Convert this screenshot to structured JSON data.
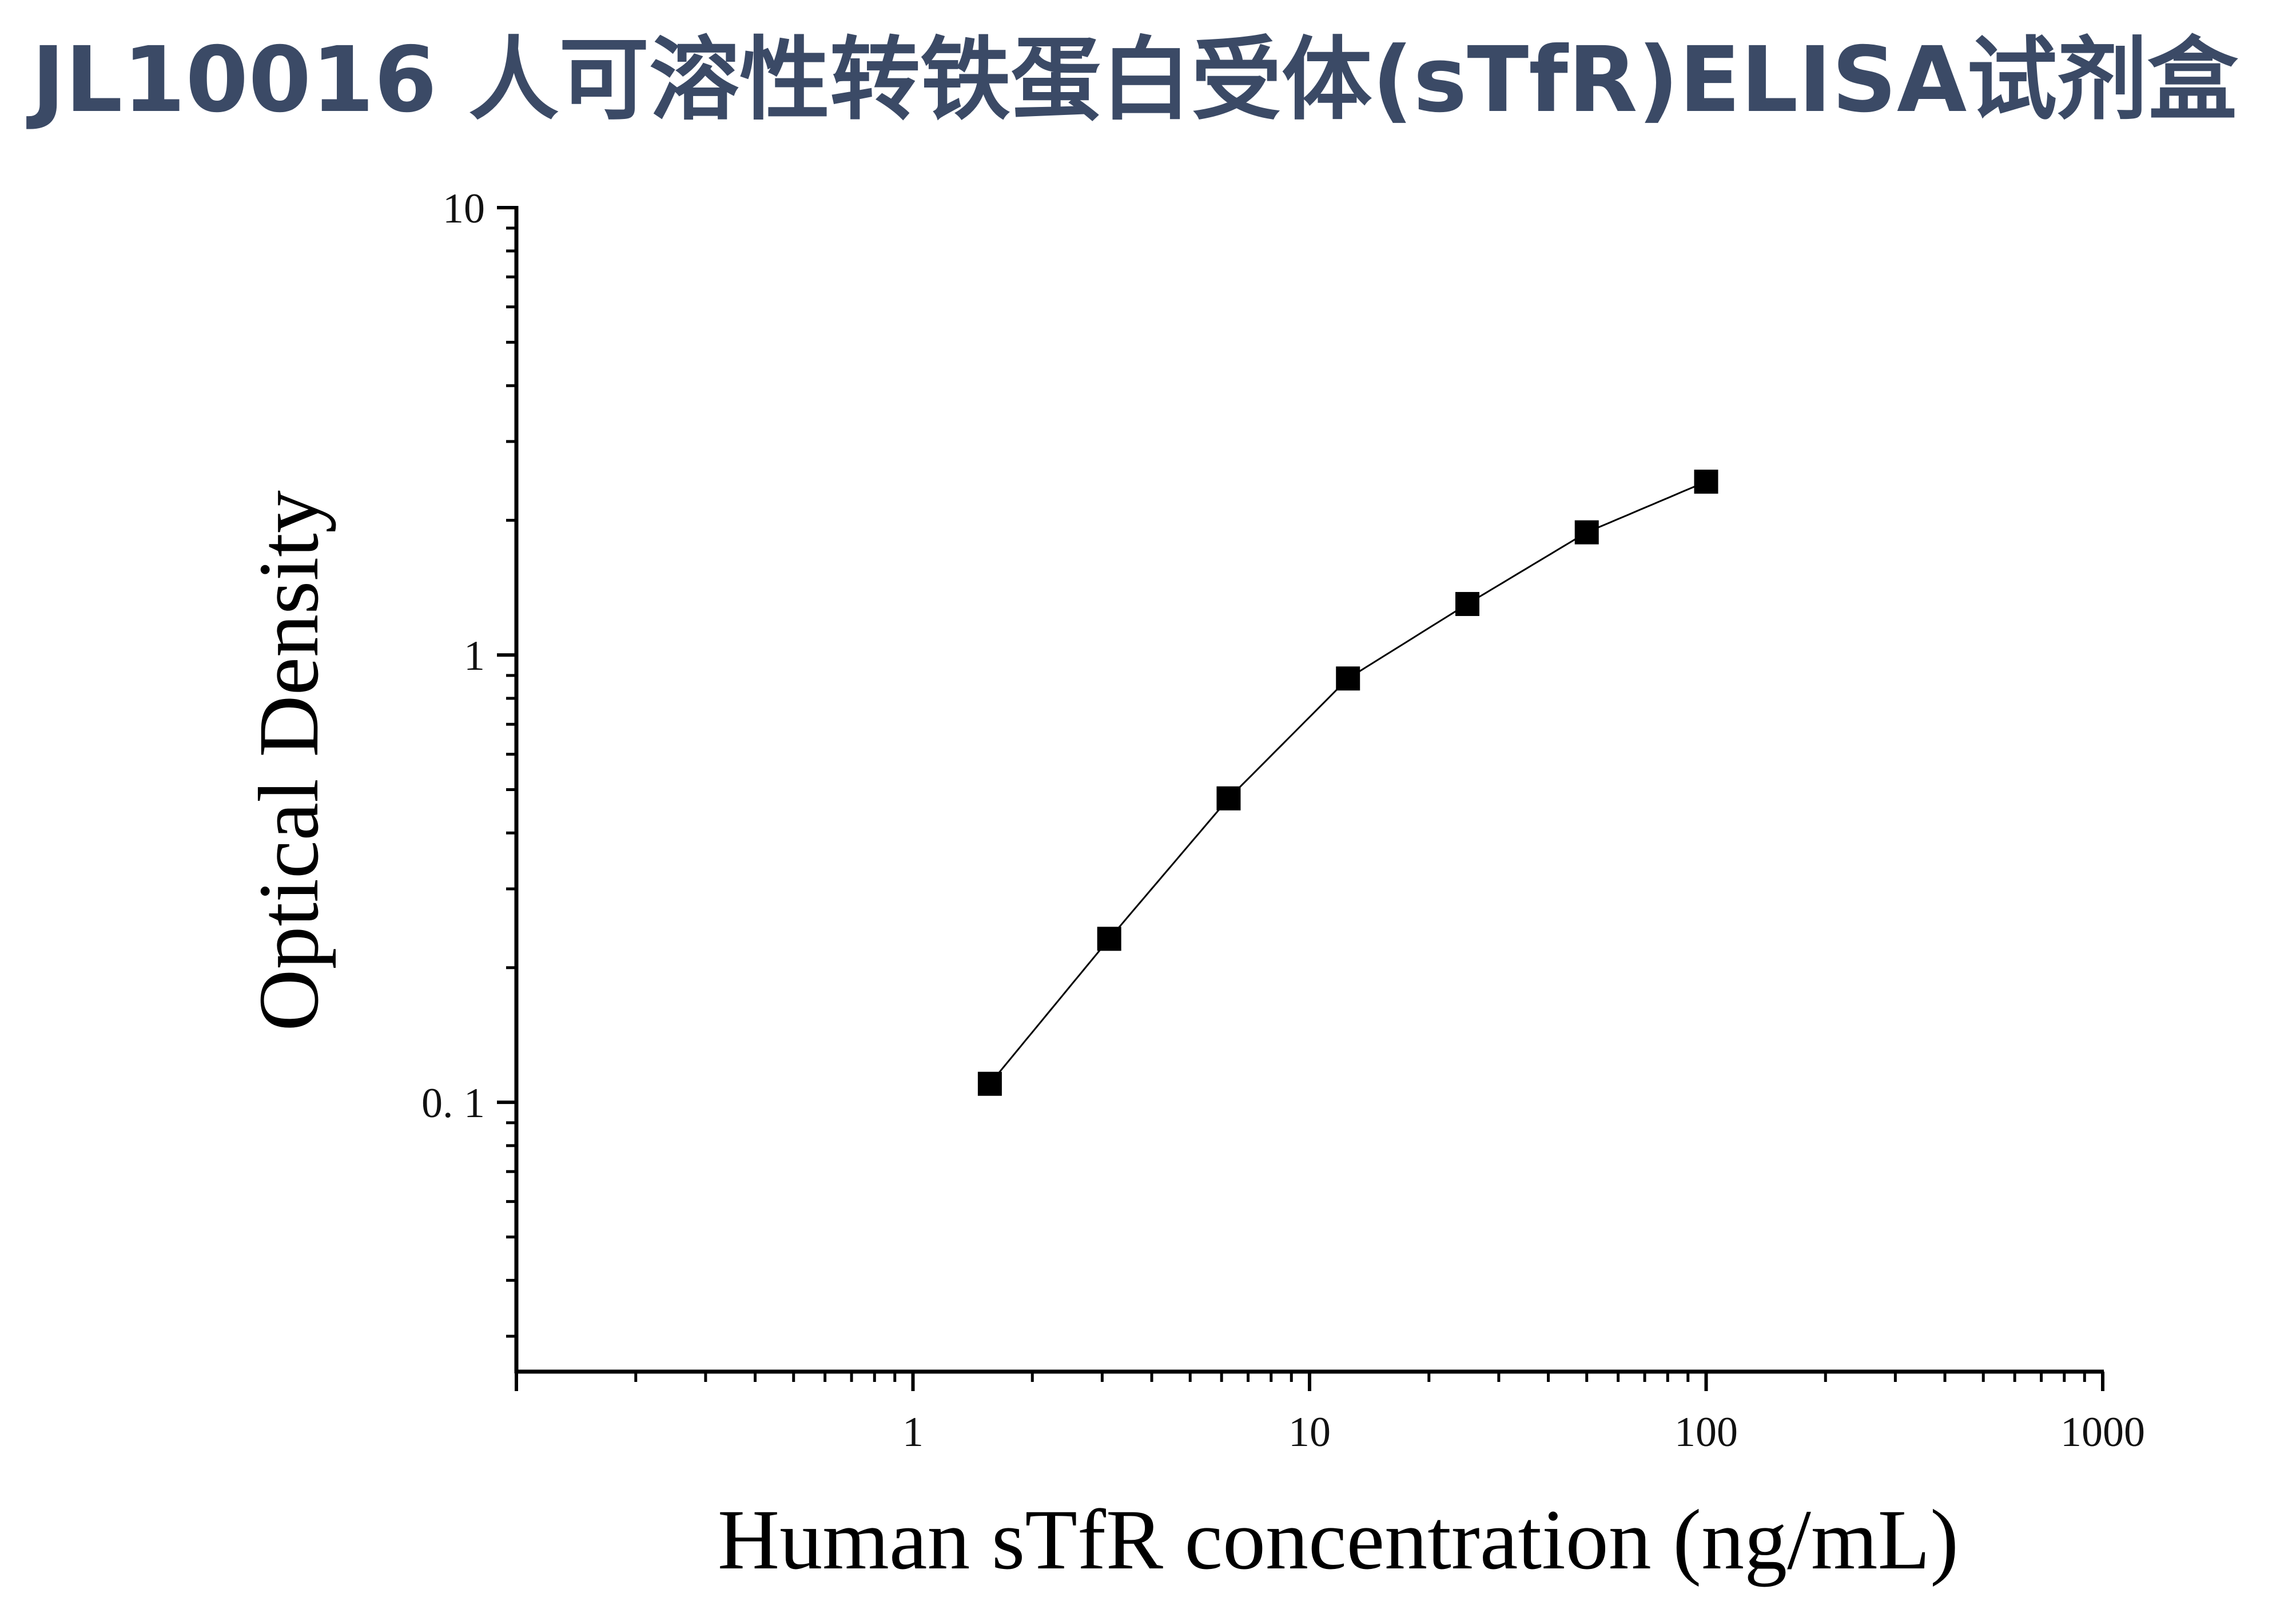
{
  "title": "JL10016 人可溶性转铁蛋白受体(sTfR)ELISA试剂盒",
  "chart_data": {
    "type": "scatter",
    "xscale": "log",
    "yscale": "log",
    "xlabel": "Human sTfR concentration (ng/mL)",
    "ylabel": "Optical Density",
    "xlim": [
      0.1,
      1000
    ],
    "ylim": [
      0.025,
      10
    ],
    "x_ticks": [
      {
        "value": 1,
        "label": "1"
      },
      {
        "value": 10,
        "label": "10"
      },
      {
        "value": 100,
        "label": "100"
      },
      {
        "value": 1000,
        "label": "1000"
      }
    ],
    "y_ticks": [
      {
        "value": 0.1,
        "label": "0. 1"
      },
      {
        "value": 1,
        "label": "1"
      },
      {
        "value": 10,
        "label": "10"
      }
    ],
    "grid": false,
    "series": [
      {
        "marker": "square",
        "color": "#000000",
        "x": [
          1.5625,
          3.125,
          6.25,
          12.5,
          25,
          50,
          100
        ],
        "y": [
          0.11,
          0.232,
          0.478,
          0.886,
          1.3,
          1.88,
          2.44
        ]
      }
    ],
    "fit_curve": {
      "style": "line",
      "color": "#000000",
      "x_range": [
        1.5625,
        100
      ]
    }
  }
}
